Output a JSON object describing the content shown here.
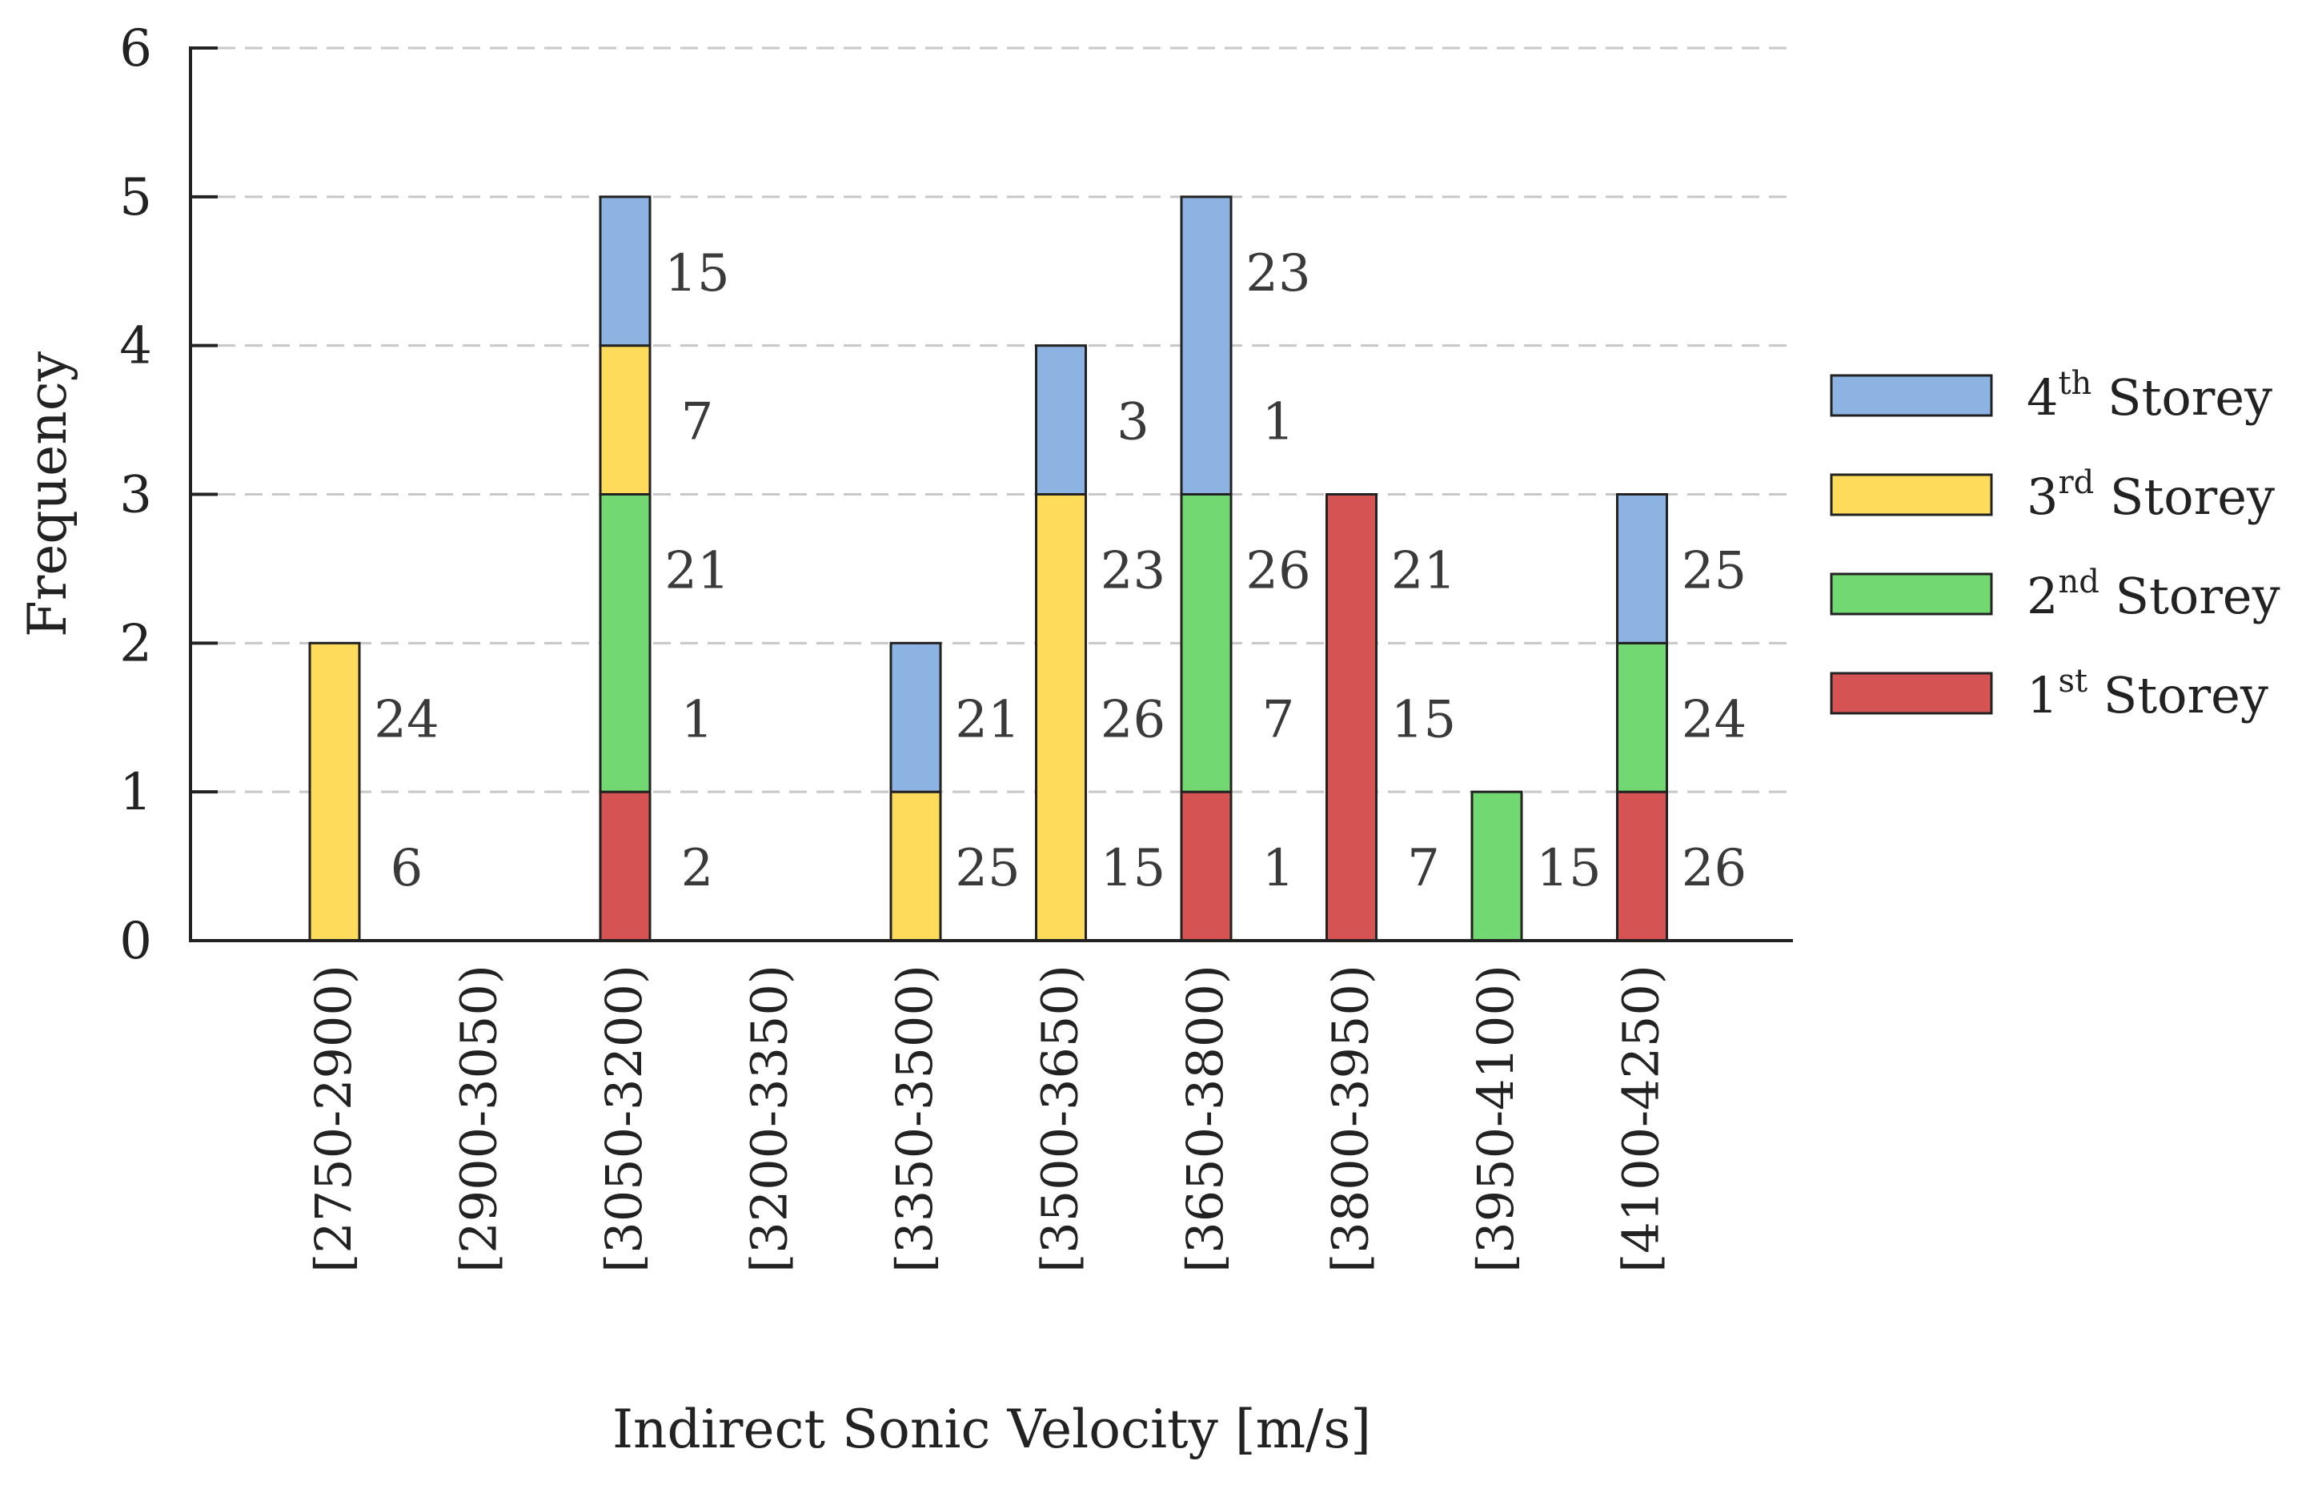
{
  "chart_data": {
    "type": "bar",
    "stacked": true,
    "title": "",
    "xlabel": "Indirect Sonic Velocity [m/s]",
    "ylabel": "Frequency",
    "ylim": [
      0,
      6
    ],
    "yticks": [
      0,
      1,
      2,
      3,
      4,
      5,
      6
    ],
    "grid": "horizontal-dashed",
    "legend_position": "right",
    "categories": [
      "[2750-2900)",
      "[2900-3050)",
      "[3050-3200)",
      "[3200-3350)",
      "[3350-3500)",
      "[3500-3650)",
      "[3650-3800)",
      "[3800-3950)",
      "[3950-4100)",
      "[4100-4250)"
    ],
    "series": [
      {
        "name": "1st Storey",
        "ord": "1",
        "sup": "st",
        "suffix": " Storey",
        "color": "#d65353",
        "values": [
          0,
          0,
          1,
          0,
          0,
          0,
          1,
          3,
          0,
          1
        ]
      },
      {
        "name": "2nd Storey",
        "ord": "2",
        "sup": "nd",
        "suffix": " Storey",
        "color": "#72d872",
        "values": [
          0,
          0,
          2,
          0,
          0,
          0,
          2,
          0,
          1,
          1
        ]
      },
      {
        "name": "3rd Storey",
        "ord": "3",
        "sup": "rd",
        "suffix": " Storey",
        "color": "#fedb5b",
        "values": [
          2,
          0,
          1,
          0,
          1,
          3,
          0,
          0,
          0,
          0
        ]
      },
      {
        "name": "4th Storey",
        "ord": "4",
        "sup": "th",
        "suffix": " Storey",
        "color": "#8db3e2",
        "values": [
          0,
          0,
          1,
          0,
          1,
          1,
          2,
          0,
          0,
          1
        ]
      }
    ],
    "annotations": [
      {
        "category": "[2750-2900)",
        "level": 1,
        "text": "24"
      },
      {
        "category": "[2750-2900)",
        "level": 0,
        "text": "6"
      },
      {
        "category": "[3050-3200)",
        "level": 4,
        "text": "15"
      },
      {
        "category": "[3050-3200)",
        "level": 3,
        "text": "7"
      },
      {
        "category": "[3050-3200)",
        "level": 2,
        "text": "21"
      },
      {
        "category": "[3050-3200)",
        "level": 1,
        "text": "1"
      },
      {
        "category": "[3050-3200)",
        "level": 0,
        "text": "2"
      },
      {
        "category": "[3350-3500)",
        "level": 1,
        "text": "21"
      },
      {
        "category": "[3350-3500)",
        "level": 0,
        "text": "25"
      },
      {
        "category": "[3500-3650)",
        "level": 3,
        "text": "3"
      },
      {
        "category": "[3500-3650)",
        "level": 2,
        "text": "23"
      },
      {
        "category": "[3500-3650)",
        "level": 1,
        "text": "26"
      },
      {
        "category": "[3500-3650)",
        "level": 0,
        "text": "15"
      },
      {
        "category": "[3650-3800)",
        "level": 4,
        "text": "23"
      },
      {
        "category": "[3650-3800)",
        "level": 3,
        "text": "1"
      },
      {
        "category": "[3650-3800)",
        "level": 2,
        "text": "26"
      },
      {
        "category": "[3650-3800)",
        "level": 1,
        "text": "7"
      },
      {
        "category": "[3650-3800)",
        "level": 0,
        "text": "1"
      },
      {
        "category": "[3800-3950)",
        "level": 2,
        "text": "21"
      },
      {
        "category": "[3800-3950)",
        "level": 1,
        "text": "15"
      },
      {
        "category": "[3800-3950)",
        "level": 0,
        "text": "7"
      },
      {
        "category": "[3950-4100)",
        "level": 0,
        "text": "15"
      },
      {
        "category": "[4100-4250)",
        "level": 2,
        "text": "25"
      },
      {
        "category": "[4100-4250)",
        "level": 1,
        "text": "24"
      },
      {
        "category": "[4100-4250)",
        "level": 0,
        "text": "26"
      }
    ]
  }
}
